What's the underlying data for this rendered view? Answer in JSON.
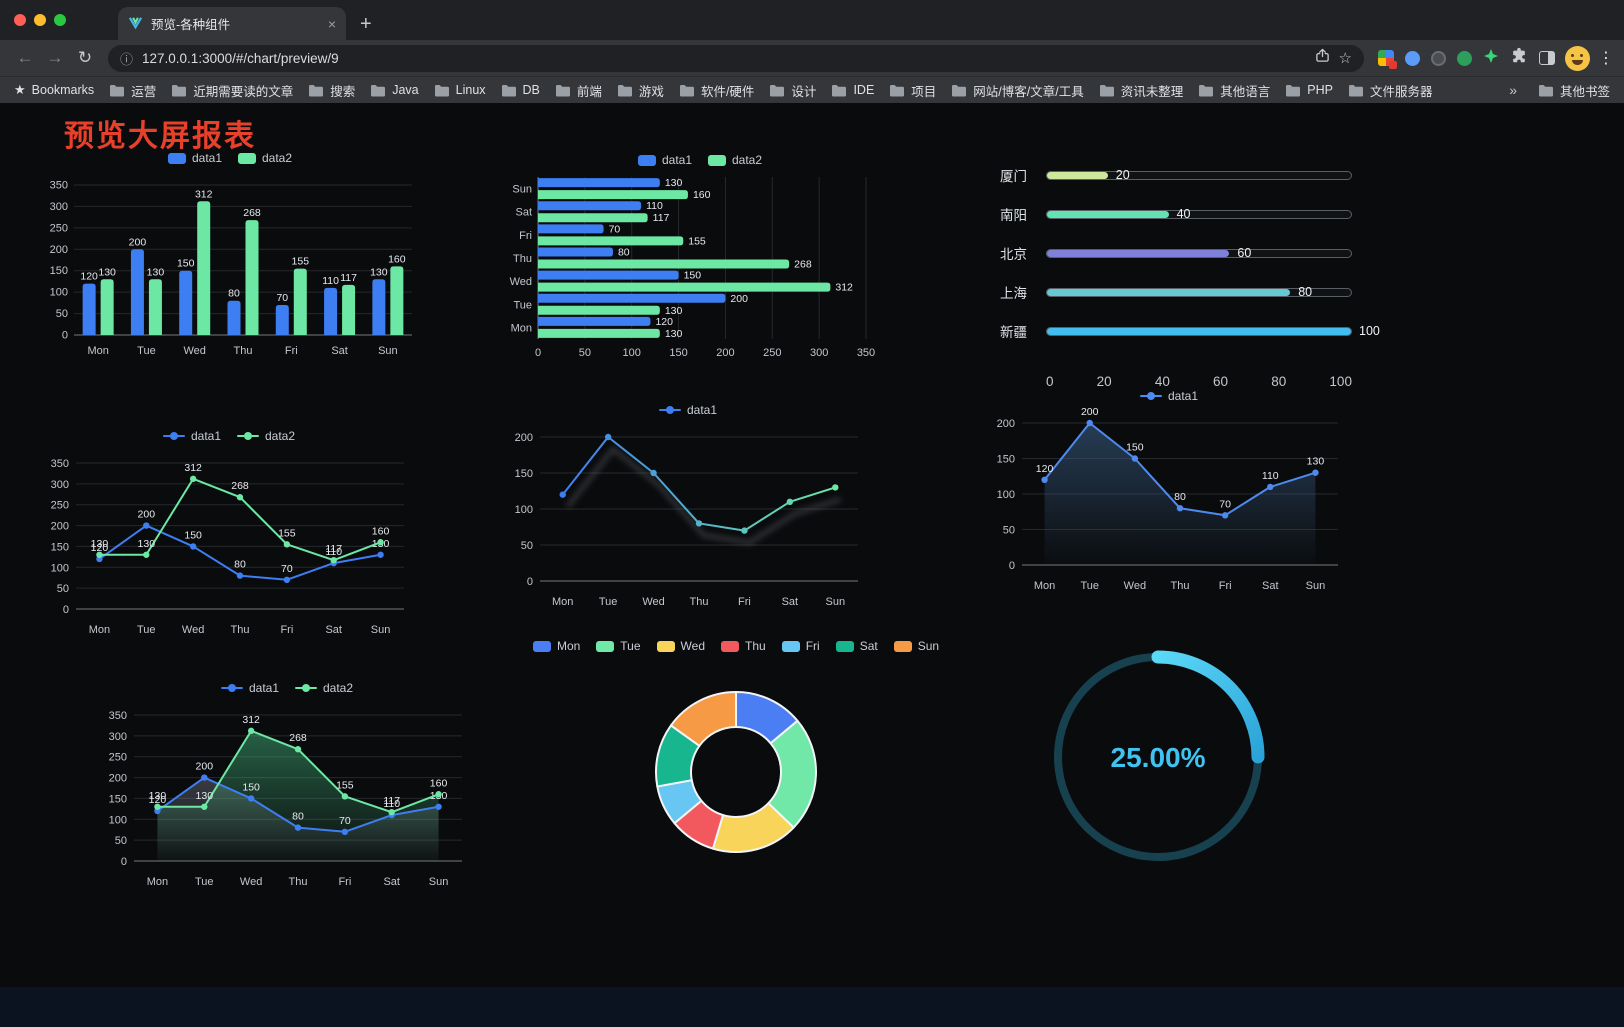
{
  "browser": {
    "tab": {
      "title": "预览-各种组件",
      "close": "×"
    },
    "new_tab_button": "+",
    "url": "127.0.0.1:3000/#/chart/preview/9",
    "nav": {
      "back": "←",
      "forward": "→",
      "reload": "↻",
      "info": "ⓘ",
      "star": "☆",
      "menu": "⋮"
    },
    "bookmarks_label": "Bookmarks",
    "bookmarks_star": "★",
    "bookmarks": [
      "运营",
      "近期需要读的文章",
      "搜索",
      "Java",
      "Linux",
      "DB",
      "前端",
      "游戏",
      "软件/硬件",
      "设计",
      "IDE",
      "项目",
      "网站/博客/文章/工具",
      "资讯未整理",
      "其他语言",
      "PHP",
      "文件服务器"
    ],
    "bookmarks_overflow": "»",
    "other_bookmarks": "其他书签"
  },
  "page": {
    "title": "预览大屏报表",
    "accent_color": "#e8402a"
  },
  "chart_data": [
    {
      "id": "bar-vertical",
      "type": "bar",
      "categories": [
        "Mon",
        "Tue",
        "Wed",
        "Thu",
        "Fri",
        "Sat",
        "Sun"
      ],
      "series": [
        {
          "name": "data1",
          "color": "#3D7EF2",
          "values": [
            120,
            200,
            150,
            80,
            70,
            110,
            130
          ]
        },
        {
          "name": "data2",
          "color": "#6CE8A4",
          "values": [
            130,
            130,
            312,
            268,
            155,
            117,
            160
          ]
        }
      ],
      "ylim": [
        0,
        350
      ],
      "ytick": 50,
      "labels": true,
      "legend_position": "top",
      "grid": true
    },
    {
      "id": "bar-horizontal",
      "type": "hbar",
      "categories": [
        "Mon",
        "Tue",
        "Wed",
        "Thu",
        "Fri",
        "Sat",
        "Sun"
      ],
      "series": [
        {
          "name": "data1",
          "color": "#3D7EF2",
          "values": [
            120,
            200,
            150,
            80,
            70,
            110,
            130
          ]
        },
        {
          "name": "data2",
          "color": "#6CE8A4",
          "values": [
            130,
            130,
            312,
            268,
            155,
            117,
            160
          ]
        }
      ],
      "xlim": [
        0,
        350
      ],
      "xtick": 50,
      "labels": true,
      "legend_position": "top",
      "grid": true
    },
    {
      "id": "progress-bars",
      "type": "progress",
      "max": 100,
      "items": [
        {
          "label": "厦门",
          "value": 20,
          "color": "#CDE79D"
        },
        {
          "label": "南阳",
          "value": 40,
          "color": "#62E3B2"
        },
        {
          "label": "北京",
          "value": 60,
          "color": "#7E80D9"
        },
        {
          "label": "上海",
          "value": 80,
          "color": "#66C9D2"
        },
        {
          "label": "新疆",
          "value": 100,
          "color": "#41BDF0"
        }
      ],
      "axis": [
        0,
        20,
        40,
        60,
        80,
        100
      ]
    },
    {
      "id": "line-two-series",
      "type": "line",
      "categories": [
        "Mon",
        "Tue",
        "Wed",
        "Thu",
        "Fri",
        "Sat",
        "Sun"
      ],
      "series": [
        {
          "name": "data1",
          "color": "#3D7EF2",
          "values": [
            120,
            200,
            150,
            80,
            70,
            110,
            130
          ]
        },
        {
          "name": "data2",
          "color": "#6CE8A4",
          "values": [
            130,
            130,
            312,
            268,
            155,
            117,
            160
          ]
        }
      ],
      "ylim": [
        0,
        350
      ],
      "ytick": 50,
      "labels": true,
      "legend_position": "top",
      "grid": true
    },
    {
      "id": "line-gradient",
      "type": "line",
      "categories": [
        "Mon",
        "Tue",
        "Wed",
        "Thu",
        "Fri",
        "Sat",
        "Sun"
      ],
      "series": [
        {
          "name": "data1",
          "gradient": [
            "#3D7EF2",
            "#6CE8A4"
          ],
          "shadow": true,
          "values": [
            120,
            200,
            150,
            80,
            70,
            110,
            130
          ]
        }
      ],
      "ylim": [
        0,
        200
      ],
      "ytick": 50,
      "labels": false,
      "legend_position": "top",
      "grid": true
    },
    {
      "id": "area-single",
      "type": "line",
      "categories": [
        "Mon",
        "Tue",
        "Wed",
        "Thu",
        "Fri",
        "Sat",
        "Sun"
      ],
      "series": [
        {
          "name": "data1",
          "color": "#4E8AF0",
          "fill": "#3A5E85",
          "fill_opacity": 0.6,
          "values": [
            120,
            200,
            150,
            80,
            70,
            110,
            130
          ]
        }
      ],
      "ylim": [
        0,
        200
      ],
      "ytick": 50,
      "labels": true,
      "legend_position": "top",
      "grid": true
    },
    {
      "id": "area-two-series",
      "type": "line",
      "categories": [
        "Mon",
        "Tue",
        "Wed",
        "Thu",
        "Fri",
        "Sat",
        "Sun"
      ],
      "series": [
        {
          "name": "data1",
          "color": "#3D7EF2",
          "fill": "#A7AFBE",
          "fill_opacity": 0.3,
          "values": [
            120,
            200,
            150,
            80,
            70,
            110,
            130
          ]
        },
        {
          "name": "data2",
          "color": "#6CE8A4",
          "fill": "#49C98A",
          "fill_opacity": 0.45,
          "values": [
            130,
            130,
            312,
            268,
            155,
            117,
            160
          ]
        }
      ],
      "ylim": [
        0,
        350
      ],
      "ytick": 50,
      "labels": true,
      "legend_position": "top",
      "grid": true
    },
    {
      "id": "donut",
      "type": "pie",
      "outer_radius": 80,
      "inner_radius": 45,
      "legend_position": "top",
      "items": [
        {
          "label": "Mon",
          "value": 120,
          "color": "#4B7DF3"
        },
        {
          "label": "Tue",
          "value": 200,
          "color": "#72E8A8"
        },
        {
          "label": "Wed",
          "value": 150,
          "color": "#F8D55A"
        },
        {
          "label": "Thu",
          "value": 80,
          "color": "#F2595F"
        },
        {
          "label": "Fri",
          "value": 70,
          "color": "#67C6F2"
        },
        {
          "label": "Sat",
          "value": 110,
          "color": "#18B68E"
        },
        {
          "label": "Sun",
          "value": 130,
          "color": "#F79A45"
        }
      ]
    },
    {
      "id": "gauge",
      "type": "gauge",
      "value": 25,
      "max": 100,
      "display": "25.00%",
      "color": "#3FC3F0",
      "track_color": "#17414E"
    }
  ]
}
